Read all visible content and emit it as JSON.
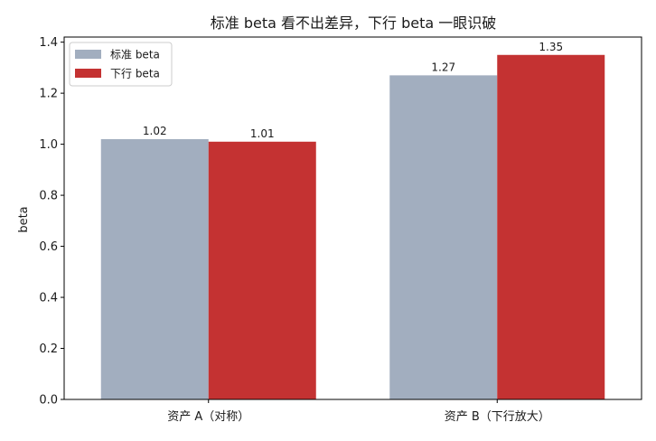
{
  "chart_data": {
    "type": "bar",
    "title": "标准 beta 看不出差异，下行 beta 一眼识破",
    "xlabel": "",
    "ylabel": "beta",
    "categories": [
      "资产 A（对称）",
      "资产 B（下行放大）"
    ],
    "series": [
      {
        "name": "标准 beta",
        "values": [
          1.02,
          1.27
        ],
        "color": "#a2aebf"
      },
      {
        "name": "下行 beta",
        "values": [
          1.01,
          1.35
        ],
        "color": "#c43232"
      }
    ],
    "data_labels": [
      [
        "1.02",
        "1.27"
      ],
      [
        "1.01",
        "1.35"
      ]
    ],
    "ylim": [
      0,
      1.42
    ],
    "yticks": [
      0.0,
      0.2,
      0.4,
      0.6,
      0.8,
      1.0,
      1.2,
      1.4
    ],
    "ytick_labels": [
      "0.0",
      "0.2",
      "0.4",
      "0.6",
      "0.8",
      "1.0",
      "1.2",
      "1.4"
    ],
    "legend_position": "upper-left",
    "grid": false
  }
}
